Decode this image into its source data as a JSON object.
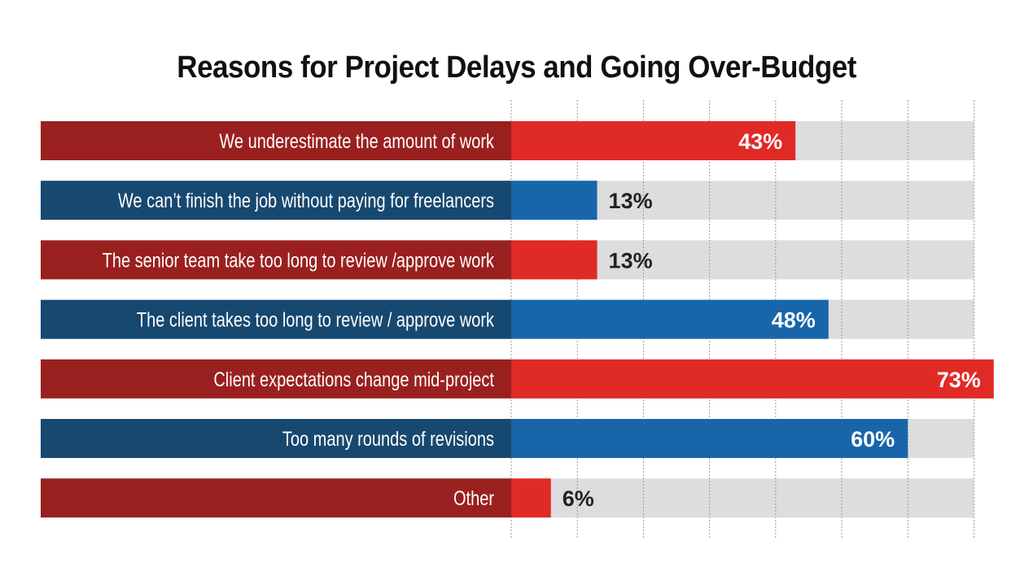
{
  "chart_data": {
    "type": "bar",
    "orientation": "horizontal",
    "title": "Reasons for Project Delays and Going Over-Budget",
    "categories": [
      "We underestimate the amount of work",
      "We can’t finish the job without paying for freelancers",
      "The senior team take too long to review /approve work",
      "The client takes too long to review / approve work",
      "Client expectations change mid-project",
      "Too many rounds of revisions",
      "Other"
    ],
    "values": [
      43,
      13,
      13,
      48,
      73,
      60,
      6
    ],
    "value_labels": [
      "43%",
      "13%",
      "13%",
      "48%",
      "73%",
      "60%",
      "6%"
    ],
    "unit": "%",
    "xlim": [
      0,
      70
    ],
    "grid": true,
    "grid_step": 10,
    "xlabel": "",
    "ylabel": ""
  },
  "colors": {
    "red_label": "#9a2020",
    "red_bar": "#e02a26",
    "blue_label": "#174870",
    "blue_bar": "#1866a9",
    "track": "#dcdddf",
    "grid": "#9a9a9a",
    "dark_text": "#222222"
  }
}
